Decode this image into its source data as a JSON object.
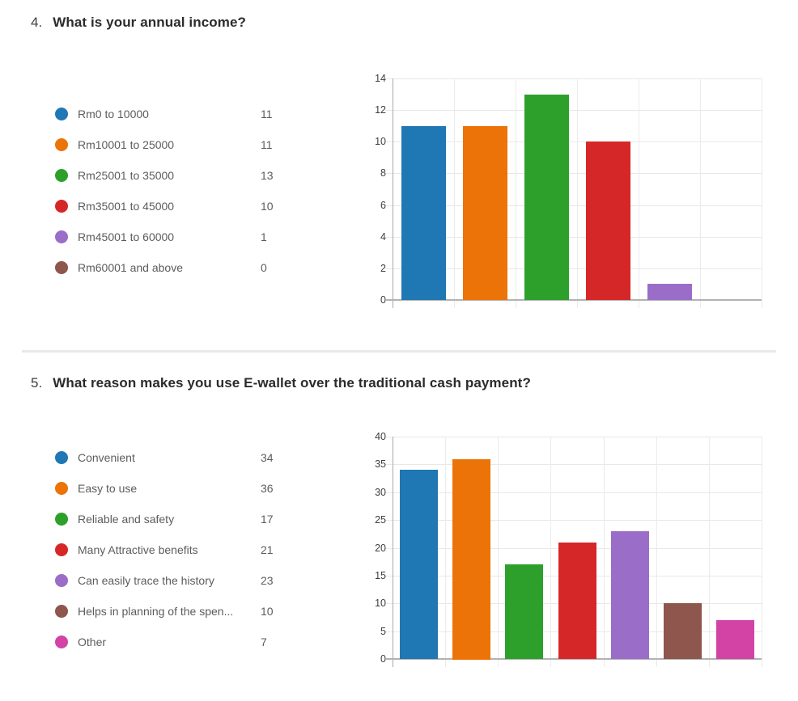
{
  "questions": [
    {
      "number": "4.",
      "title": "What is your annual income?",
      "legend": [
        {
          "label": "Rm0 to 10000",
          "value": "11",
          "color": "#1F77B4"
        },
        {
          "label": "Rm10001 to 25000",
          "value": "11",
          "color": "#EC7307"
        },
        {
          "label": "Rm25001 to 35000",
          "value": "13",
          "color": "#2DA02C"
        },
        {
          "label": "Rm35001 to 45000",
          "value": "10",
          "color": "#D62728"
        },
        {
          "label": "Rm45001 to 60000",
          "value": "1",
          "color": "#9A6DC9"
        },
        {
          "label": "Rm60001 and above",
          "value": "0",
          "color": "#8E564C"
        }
      ],
      "chart_data": {
        "type": "bar",
        "title": "",
        "xlabel": "",
        "ylabel": "",
        "categories": [
          "Rm0 to 10000",
          "Rm10001 to 25000",
          "Rm25001 to 35000",
          "Rm35001 to 45000",
          "Rm45001 to 60000",
          "Rm60001 and above"
        ],
        "values": [
          11,
          11,
          13,
          10,
          1,
          0
        ],
        "colors": [
          "#1F77B4",
          "#EC7307",
          "#2DA02C",
          "#D62728",
          "#9A6DC9",
          "#8E564C"
        ],
        "ylim": [
          0,
          14
        ],
        "yticks": [
          0,
          2,
          4,
          6,
          8,
          10,
          12,
          14
        ],
        "grid": true,
        "legend_position": "left"
      }
    },
    {
      "number": "5.",
      "title": "What reason makes you use E-wallet over the traditional cash payment?",
      "legend": [
        {
          "label": "Convenient",
          "value": "34",
          "color": "#1F77B4"
        },
        {
          "label": "Easy to use",
          "value": "36",
          "color": "#EC7307"
        },
        {
          "label": "Reliable and safety",
          "value": "17",
          "color": "#2DA02C"
        },
        {
          "label": "Many Attractive benefits",
          "value": "21",
          "color": "#D62728"
        },
        {
          "label": "Can easily trace the history",
          "value": "23",
          "color": "#9A6DC9"
        },
        {
          "label": "Helps in planning of the spen...",
          "value": "10",
          "color": "#8E564C"
        },
        {
          "label": "Other",
          "value": "7",
          "color": "#D342A5"
        }
      ],
      "chart_data": {
        "type": "bar",
        "title": "",
        "xlabel": "",
        "ylabel": "",
        "categories": [
          "Convenient",
          "Easy to use",
          "Reliable and safety",
          "Many Attractive benefits",
          "Can easily trace the history",
          "Helps in planning of the spen...",
          "Other"
        ],
        "values": [
          34,
          36,
          17,
          21,
          23,
          10,
          7
        ],
        "colors": [
          "#1F77B4",
          "#EC7307",
          "#2DA02C",
          "#D62728",
          "#9A6DC9",
          "#8E564C",
          "#D342A5"
        ],
        "ylim": [
          0,
          40
        ],
        "yticks": [
          0,
          5,
          10,
          15,
          20,
          25,
          30,
          35,
          40
        ],
        "grid": true,
        "legend_position": "left"
      }
    }
  ]
}
